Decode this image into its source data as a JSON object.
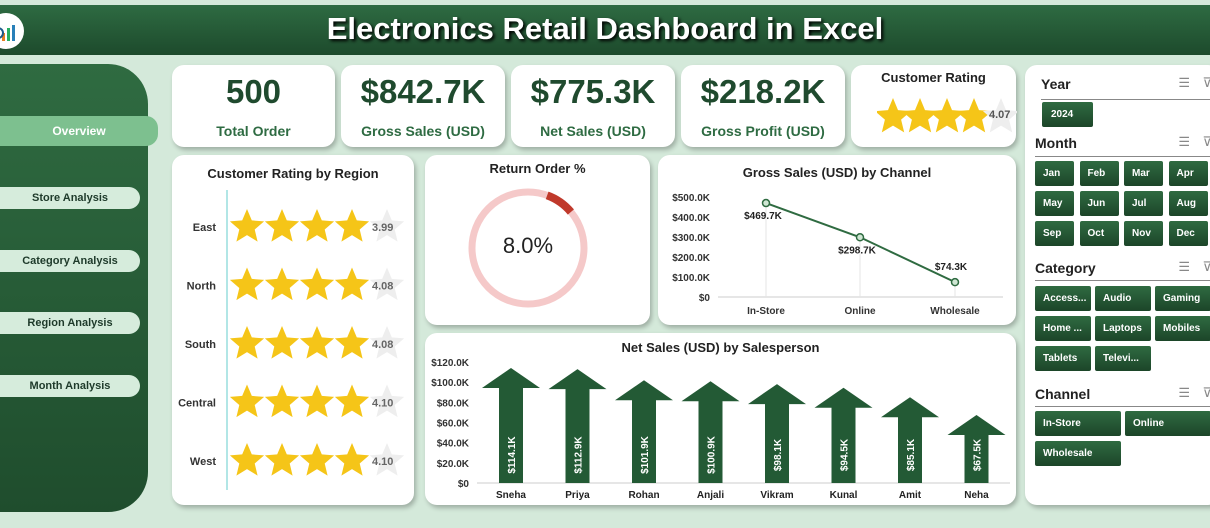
{
  "header": {
    "title": "Electronics Retail Dashboard in Excel"
  },
  "sidebar": {
    "items": [
      {
        "label": "Overview"
      },
      {
        "label": "Store Analysis"
      },
      {
        "label": "Category Analysis"
      },
      {
        "label": "Region Analysis"
      },
      {
        "label": "Month Analysis"
      }
    ]
  },
  "kpis": [
    {
      "value": "500",
      "label": "Total Order"
    },
    {
      "value": "$842.7K",
      "label": "Gross Sales (USD)"
    },
    {
      "value": "$775.3K",
      "label": "Net Sales (USD)"
    },
    {
      "value": "$218.2K",
      "label": "Gross Profit (USD)"
    }
  ],
  "customer_rating": {
    "title": "Customer Rating",
    "value": "4.07",
    "rating": 4.07
  },
  "return_order": {
    "title": "Return Order %",
    "value": "8.0%",
    "percent": 8.0
  },
  "slicers": {
    "year": {
      "title": "Year",
      "items": [
        "2024"
      ]
    },
    "month": {
      "title": "Month",
      "items": [
        "Jan",
        "Feb",
        "Mar",
        "Apr",
        "May",
        "Jun",
        "Jul",
        "Aug",
        "Sep",
        "Oct",
        "Nov",
        "Dec"
      ]
    },
    "category": {
      "title": "Category",
      "items": [
        "Access...",
        "Audio",
        "Gaming",
        "Home ...",
        "Laptops",
        "Mobiles",
        "Tablets",
        "Televi..."
      ]
    },
    "channel": {
      "title": "Channel",
      "items": [
        "In-Store",
        "Online",
        "Wholesale"
      ]
    }
  },
  "colors": {
    "dark_green": "#1f4d2d",
    "star": "#f5c518",
    "accent_red": "#c0392b"
  },
  "chart_data": [
    {
      "type": "bar",
      "title": "Customer Rating by Region",
      "categories": [
        "East",
        "North",
        "South",
        "Central",
        "West"
      ],
      "values": [
        3.99,
        4.08,
        4.08,
        4.1,
        4.1
      ],
      "labels": [
        "3.99",
        "4.08",
        "4.08",
        "4.10",
        "4.10"
      ],
      "max": 5
    },
    {
      "type": "line",
      "title": "Gross Sales (USD) by Channel",
      "categories": [
        "In-Store",
        "Online",
        "Wholesale"
      ],
      "values": [
        469.7,
        298.7,
        74.3
      ],
      "labels": [
        "$469.7K",
        "$298.7K",
        "$74.3K"
      ],
      "yticks": [
        "$0",
        "$100.0K",
        "$200.0K",
        "$300.0K",
        "$400.0K",
        "$500.0K"
      ],
      "ylim": [
        0,
        500
      ]
    },
    {
      "type": "bar",
      "title": "Net Sales (USD) by Salesperson",
      "categories": [
        "Sneha",
        "Priya",
        "Rohan",
        "Anjali",
        "Vikram",
        "Kunal",
        "Amit",
        "Neha"
      ],
      "values": [
        114.1,
        112.9,
        101.9,
        100.9,
        98.1,
        94.5,
        85.1,
        67.5
      ],
      "labels": [
        "$114.1K",
        "$112.9K",
        "$101.9K",
        "$100.9K",
        "$98.1K",
        "$94.5K",
        "$85.1K",
        "$67.5K"
      ],
      "yticks": [
        "$0",
        "$20.0K",
        "$40.0K",
        "$60.0K",
        "$80.0K",
        "$100.0K",
        "$120.0K"
      ],
      "ylim": [
        0,
        120
      ]
    }
  ]
}
